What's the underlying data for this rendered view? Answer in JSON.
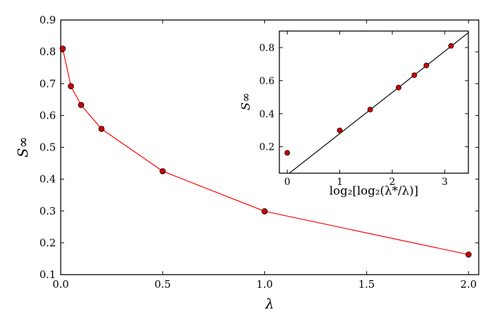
{
  "chart_data": [
    {
      "type": "line",
      "title": "",
      "xlabel": "λ",
      "ylabel": "S∞",
      "xlim": [
        0.0,
        2.05
      ],
      "ylim": [
        0.1,
        0.9
      ],
      "xticks": [
        "0.0",
        "0.5",
        "1.0",
        "1.5",
        "2.0"
      ],
      "yticks": [
        "0.1",
        "0.2",
        "0.3",
        "0.4",
        "0.5",
        "0.6",
        "0.7",
        "0.8",
        "0.9"
      ],
      "xtick_values": [
        0.0,
        0.5,
        1.0,
        1.5,
        2.0
      ],
      "ytick_values": [
        0.1,
        0.2,
        0.3,
        0.4,
        0.5,
        0.6,
        0.7,
        0.8,
        0.9
      ],
      "grid": false,
      "series": [
        {
          "line_color": "#ff0000",
          "marker_color": "#cc0000",
          "x": [
            0.01,
            0.05,
            0.1,
            0.2,
            0.5,
            1.0,
            2.0
          ],
          "y": [
            0.81,
            0.692,
            0.633,
            0.558,
            0.425,
            0.299,
            0.163
          ]
        }
      ]
    },
    {
      "type": "scatter",
      "title": "",
      "xlabel": "log₂[log₂(λ*/λ)]",
      "ylabel": "S∞",
      "xlim": [
        -0.15,
        3.45
      ],
      "ylim": [
        0.04,
        0.9
      ],
      "xticks": [
        "0",
        "1",
        "2",
        "3"
      ],
      "yticks": [
        "0.2",
        "0.4",
        "0.6",
        "0.8"
      ],
      "xtick_values": [
        0,
        1,
        2,
        3
      ],
      "ytick_values": [
        0.2,
        0.4,
        0.6,
        0.8
      ],
      "grid": false,
      "series": [
        {
          "marker_color": "#cc0000",
          "x": [
            0.0,
            1.0,
            1.58,
            2.12,
            2.42,
            2.65,
            3.12
          ],
          "y": [
            0.163,
            0.299,
            0.425,
            0.558,
            0.633,
            0.692,
            0.81
          ]
        }
      ],
      "fit_line": {
        "color": "#000000",
        "x": [
          0.0,
          3.45
        ],
        "y": [
          0.03,
          0.89
        ]
      }
    }
  ]
}
